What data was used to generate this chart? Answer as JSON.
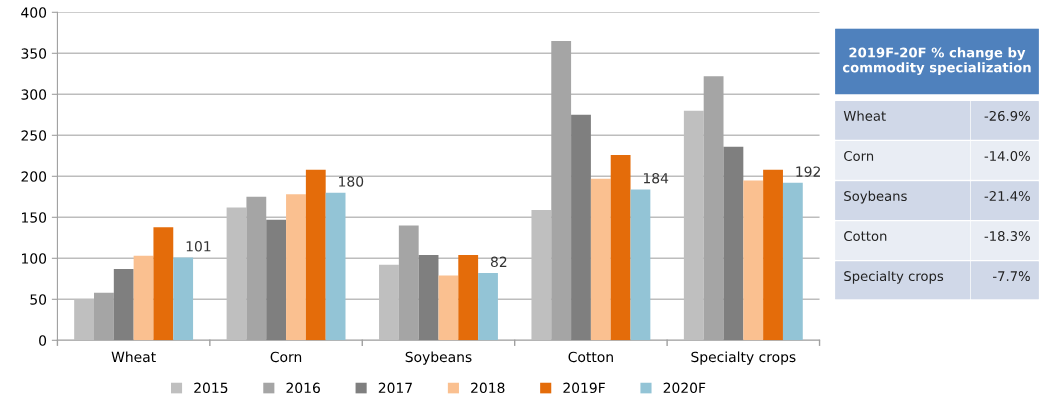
{
  "chart_data": [
    {
      "type": "bar",
      "categories": [
        "Wheat",
        "Corn",
        "Soybeans",
        "Cotton",
        "Specialty crops"
      ],
      "series": [
        {
          "name": "2015",
          "color": "#bfbfbf",
          "values": [
            50,
            162,
            92,
            159,
            280
          ]
        },
        {
          "name": "2016",
          "color": "#a5a5a5",
          "values": [
            58,
            175,
            140,
            365,
            322
          ]
        },
        {
          "name": "2017",
          "color": "#7f7f7f",
          "values": [
            87,
            147,
            104,
            275,
            236
          ]
        },
        {
          "name": "2018",
          "color": "#fac090",
          "values": [
            103,
            178,
            79,
            197,
            195
          ]
        },
        {
          "name": "2019F",
          "color": "#e46c0a",
          "values": [
            138,
            208,
            104,
            226,
            208
          ]
        },
        {
          "name": "2020F",
          "color": "#93c4d6",
          "values": [
            101,
            180,
            82,
            184,
            192
          ],
          "value_labels": [
            "101",
            "180",
            "82",
            "184",
            "192"
          ]
        }
      ],
      "ylim": [
        0,
        400
      ],
      "yticks": [
        0,
        50,
        100,
        150,
        200,
        250,
        300,
        350,
        400
      ],
      "grid": "y",
      "legend": "bottom"
    },
    {
      "type": "other",
      "title": "2019F-20F % change by commodity specialization",
      "annotations": [
        "Wheat",
        "-26.9%",
        "Corn",
        "-14.0%",
        "Soybeans",
        "-21.4%",
        "Cotton",
        "-18.3%",
        "Specialty crops",
        "-7.7%"
      ]
    }
  ]
}
